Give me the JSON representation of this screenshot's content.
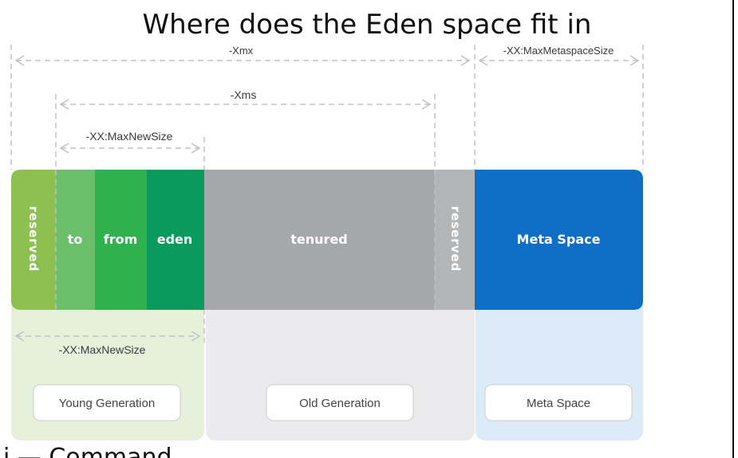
{
  "title": "Where does the Eden space fit in",
  "footer_text": "i — Command",
  "dimensions": {
    "xmx": "-Xmx",
    "max_metaspace": "-XX:MaxMetaspaceSize",
    "xms": "-Xms",
    "max_new_top": "-XX:MaxNewSize",
    "max_new_bottom": "-XX:MaxNewSize"
  },
  "segments": {
    "reserved_left": "reserved",
    "to": "to",
    "from": "from",
    "eden": "eden",
    "tenured": "tenured",
    "reserved_right": "reserved",
    "meta_space": "Meta Space"
  },
  "regions": {
    "young": "Young Generation",
    "old": "Old Generation",
    "meta": "Meta Space"
  },
  "colors": {
    "reserved_left": "#8cc152",
    "to": "#6cbf6a",
    "from": "#2fb150",
    "eden": "#0a9a5c",
    "tenured": "#a5a7aa",
    "reserved_right": "#b3b5b7",
    "meta_space": "#0f6fc6",
    "young_bg": "#e6f1dc",
    "old_bg": "#ebebed",
    "meta_bg": "#ddeaf8"
  }
}
